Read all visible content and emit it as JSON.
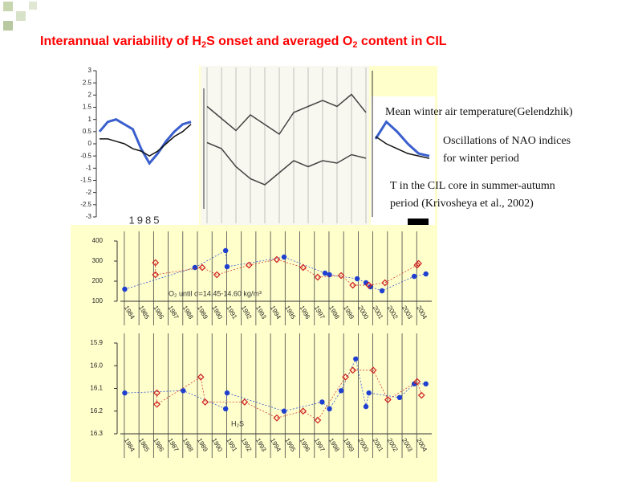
{
  "title": [
    "Interannual variability of H",
    "2",
    "S onset and averaged O",
    "2",
    " content in CIL"
  ],
  "annotations": [
    "Mean winter air temperature(Gelendzhik)",
    "Oscillations of NAO indices",
    "for winter period",
    "T in the CIL core in summer-autumn",
    "period (Krivosheya et al., 2002)"
  ],
  "chart_data": [
    {
      "type": "line",
      "xlabel": "1985",
      "ylim": [
        -3,
        3
      ],
      "yticks": [
        3,
        2.5,
        2,
        1.5,
        1,
        0.5,
        0,
        -0.5,
        -1,
        -1.5,
        -2,
        -2.5,
        -3
      ],
      "series": [
        {
          "color": "#3a5fcd",
          "values": [
            0.5,
            0.9,
            1.0,
            0.8,
            0.6,
            -0.2,
            -0.8,
            -0.4,
            0.1,
            0.5,
            0.8,
            0.9
          ]
        },
        {
          "color": "#111111",
          "values": [
            0.2,
            0.2,
            0.1,
            0.0,
            -0.2,
            -0.3,
            -0.5,
            -0.3,
            0.0,
            0.3,
            0.5,
            0.8
          ]
        }
      ]
    },
    {
      "type": "line",
      "ylim": [
        0,
        10
      ],
      "series": [
        {
          "color": "#444444",
          "values": [
            8.5,
            7.5,
            6.5,
            7.8,
            7,
            6.2,
            8,
            8.5,
            9,
            8.5,
            9.5,
            8
          ]
        },
        {
          "color": "#444444",
          "values": [
            5.5,
            5,
            3.5,
            2.5,
            2,
            3,
            4,
            3.5,
            4,
            3.8,
            4.5,
            4.2
          ]
        }
      ]
    },
    {
      "type": "line",
      "ylim": [
        -3,
        3
      ],
      "series": [
        {
          "color": "#3a5fcd",
          "values": [
            0.2,
            0.9,
            0.5,
            0,
            -0.4,
            -0.5
          ]
        },
        {
          "color": "#111111",
          "values": [
            0.3,
            0,
            -0.2,
            -0.4,
            -0.5,
            -0.6
          ]
        }
      ]
    },
    {
      "type": "scatter",
      "annotation": "O₂ until σ=14.45-14.60 kg/m³",
      "xlim": [
        1983.4,
        2004.7
      ],
      "ylim": [
        100,
        400
      ],
      "yticks": [
        100,
        200,
        300,
        400
      ],
      "xticks": [
        1984,
        1985,
        1986,
        1987,
        1988,
        1989,
        1990,
        1991,
        1992,
        1993,
        1994,
        1995,
        1996,
        1997,
        1998,
        1999,
        2000,
        2001,
        2002,
        2003,
        2004
      ],
      "series": [
        {
          "color": "#1f3fd0",
          "marker": "circle",
          "x": [
            1983.7,
            1988.5,
            1990.6,
            1990.7,
            1994.6,
            1997.4,
            1997.7,
            1999.6,
            2000.2,
            2000.5,
            2001.3,
            2003.5,
            2004.3
          ],
          "values": [
            160,
            268,
            352,
            272,
            320,
            240,
            232,
            212,
            192,
            172,
            152,
            224,
            236
          ]
        },
        {
          "color": "#d02020",
          "marker": "diamond",
          "x": [
            1985.8,
            1985.8,
            1989.0,
            1990.0,
            1992.2,
            1994.1,
            1995.9,
            1996.9,
            1998.5,
            1999.3,
            2000.4,
            2001.5,
            2003.7,
            2003.8
          ],
          "values": [
            292,
            232,
            268,
            232,
            280,
            308,
            268,
            220,
            228,
            180,
            180,
            192,
            280,
            288
          ]
        }
      ]
    },
    {
      "type": "scatter",
      "annotation": "H₂S",
      "xlim": [
        1983.4,
        2004.7
      ],
      "ylim": [
        16.3,
        15.9
      ],
      "yticks": [
        15.9,
        {
          "value": 16,
          "label": "16.0"
        },
        16.1,
        16.2,
        16.3
      ],
      "xticks": [
        1984,
        1985,
        1986,
        1987,
        1988,
        1989,
        1990,
        1991,
        1992,
        1993,
        1994,
        1995,
        1996,
        1997,
        1998,
        1999,
        2000,
        2001,
        2002,
        2003,
        2004
      ],
      "series": [
        {
          "color": "#1f3fd0",
          "marker": "circle",
          "x": [
            1983.7,
            1987.7,
            1990.6,
            1990.7,
            1994.6,
            1997.2,
            1997.7,
            1998.5,
            1999.5,
            2000.2,
            2000.4,
            2002.5,
            2003.5,
            2004.3
          ],
          "values": [
            16.12,
            16.11,
            16.19,
            16.12,
            16.2,
            16.16,
            16.19,
            16.11,
            15.97,
            16.18,
            16.12,
            16.14,
            16.08,
            16.08
          ]
        },
        {
          "color": "#d02020",
          "marker": "diamond",
          "x": [
            1985.9,
            1985.9,
            1988.9,
            1989.2,
            1991.9,
            1994.1,
            1995.9,
            1996.9,
            1998.8,
            1999.3,
            2000.7,
            2001.7,
            2003.7,
            2004.0
          ],
          "values": [
            16.12,
            16.17,
            16.05,
            16.16,
            16.16,
            16.23,
            16.2,
            16.24,
            16.05,
            16.02,
            16.02,
            16.15,
            16.07,
            16.13
          ]
        }
      ]
    }
  ]
}
